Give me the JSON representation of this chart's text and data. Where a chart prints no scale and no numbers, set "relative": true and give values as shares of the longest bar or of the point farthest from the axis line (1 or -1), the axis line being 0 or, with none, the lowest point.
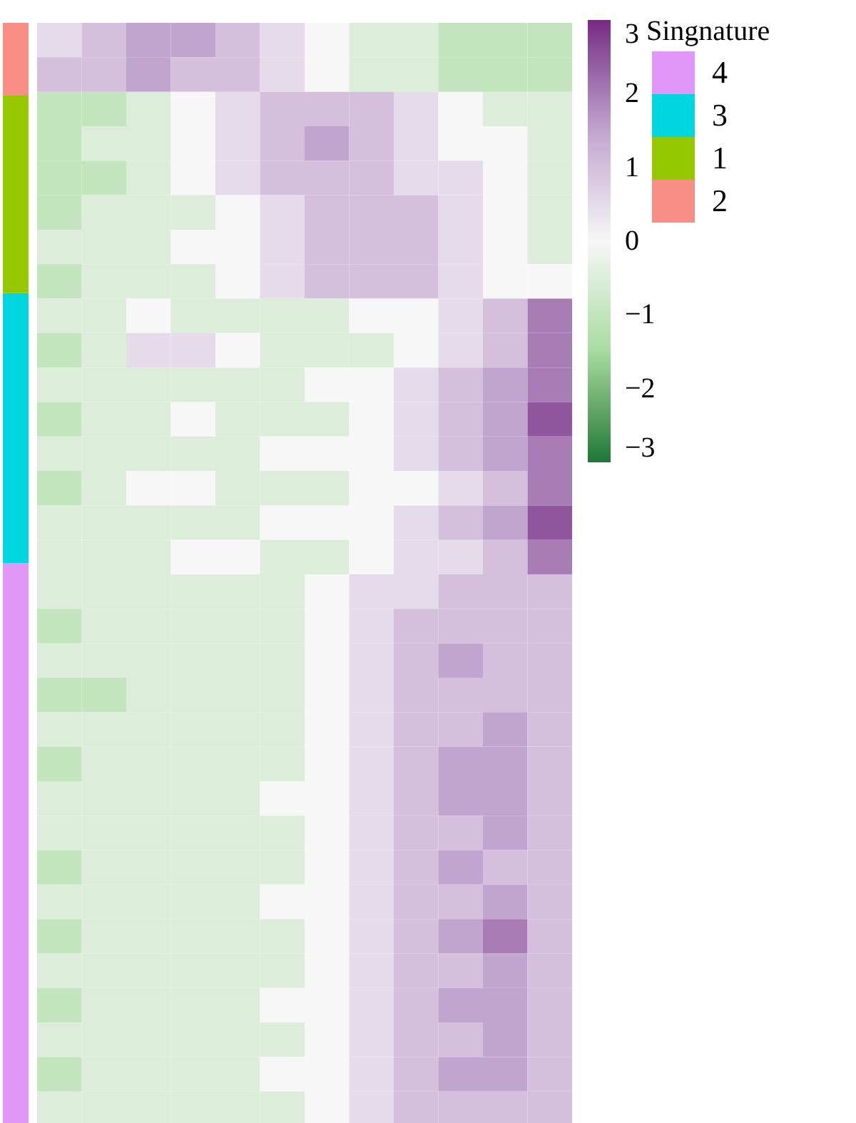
{
  "chart_data": [
    {
      "type": "bar",
      "stacked": true,
      "relative": true,
      "legend_title": "Singnature",
      "legend": "right",
      "categories": [
        null
      ],
      "series": [
        {
          "name": "4",
          "color": "#e097f8",
          "values": [
            0.51
          ]
        },
        {
          "name": "3",
          "color": "#00d6e0",
          "values": [
            0.245
          ]
        },
        {
          "name": "1",
          "color": "#96c800",
          "values": [
            0.179
          ]
        },
        {
          "name": "2",
          "color": "#f98e86",
          "values": [
            0.066
          ]
        }
      ]
    },
    {
      "type": "heatmap",
      "categories": [
        null,
        null,
        null,
        null,
        null,
        null,
        null,
        null,
        null,
        null,
        null,
        null
      ],
      "y_categories": [
        null,
        null,
        null,
        null,
        null,
        null,
        null,
        null,
        null,
        null,
        null,
        null,
        null,
        null,
        null,
        null,
        null,
        null,
        null,
        null,
        null,
        null,
        null,
        null,
        null,
        null,
        null,
        null,
        null,
        null,
        null,
        null
      ],
      "clim": [
        -3,
        3
      ],
      "cticks": [
        3,
        2,
        1,
        0,
        -1,
        -2,
        -3
      ],
      "cells": [
        [
          0.5,
          1,
          1.5,
          1.5,
          1,
          0.5,
          0,
          -0.5,
          -0.5,
          -1,
          -1,
          -1
        ],
        [
          1,
          1,
          1.5,
          1,
          1,
          0.5,
          0,
          -0.5,
          -0.5,
          -1,
          -1,
          -1
        ],
        [
          -1,
          -1,
          -0.5,
          0,
          0.5,
          1,
          1,
          1,
          0.5,
          0,
          -0.5,
          -0.5
        ],
        [
          -1,
          -0.5,
          -0.5,
          0,
          0.5,
          1,
          1.5,
          1,
          0.5,
          0,
          0,
          -0.5
        ],
        [
          -1,
          -1,
          -0.5,
          0,
          0.5,
          1,
          1,
          1,
          0.5,
          0.5,
          0,
          -0.5
        ],
        [
          -1,
          -0.5,
          -0.5,
          -0.5,
          0,
          0.5,
          1,
          1,
          1,
          0.5,
          0,
          -0.5
        ],
        [
          -0.5,
          -0.5,
          -0.5,
          0,
          0,
          0.5,
          1,
          1,
          1,
          0.5,
          0,
          -0.5
        ],
        [
          -1,
          -0.5,
          -0.5,
          -0.5,
          0,
          0.5,
          1,
          1,
          1,
          0.5,
          0,
          0
        ],
        [
          -0.5,
          -0.5,
          0,
          -0.5,
          -0.5,
          -0.5,
          -0.5,
          0,
          0,
          0.5,
          1,
          2
        ],
        [
          -1,
          -0.5,
          0.5,
          0.5,
          0,
          -0.5,
          -0.5,
          -0.5,
          0,
          0.5,
          1,
          2
        ],
        [
          -0.5,
          -0.5,
          -0.5,
          -0.5,
          -0.5,
          -0.5,
          0,
          0,
          0.5,
          1,
          1.5,
          2
        ],
        [
          -1,
          -0.5,
          -0.5,
          0,
          -0.5,
          -0.5,
          -0.5,
          0,
          0.5,
          1,
          1.5,
          2.5
        ],
        [
          -0.5,
          -0.5,
          -0.5,
          -0.5,
          -0.5,
          0,
          0,
          0,
          0.5,
          1,
          1.5,
          2
        ],
        [
          -1,
          -0.5,
          0,
          0,
          -0.5,
          -0.5,
          -0.5,
          0,
          0,
          0.5,
          1,
          2
        ],
        [
          -0.5,
          -0.5,
          -0.5,
          -0.5,
          -0.5,
          0,
          0,
          0,
          0.5,
          1,
          1.5,
          2.5
        ],
        [
          -0.5,
          -0.5,
          -0.5,
          0,
          0,
          -0.5,
          -0.5,
          0,
          0.5,
          0.5,
          1,
          2
        ],
        [
          -0.5,
          -0.5,
          -0.5,
          -0.5,
          -0.5,
          -0.5,
          0,
          0.5,
          0.5,
          1,
          1,
          1
        ],
        [
          -1,
          -0.5,
          -0.5,
          -0.5,
          -0.5,
          -0.5,
          0,
          0.5,
          1,
          1,
          1,
          1
        ],
        [
          -0.5,
          -0.5,
          -0.5,
          -0.5,
          -0.5,
          -0.5,
          0,
          0.5,
          1,
          1.5,
          1,
          1
        ],
        [
          -1,
          -1,
          -0.5,
          -0.5,
          -0.5,
          -0.5,
          0,
          0.5,
          1,
          1,
          1,
          1
        ],
        [
          -0.5,
          -0.5,
          -0.5,
          -0.5,
          -0.5,
          -0.5,
          0,
          0.5,
          1,
          1,
          1.5,
          1
        ],
        [
          -1,
          -0.5,
          -0.5,
          -0.5,
          -0.5,
          -0.5,
          0,
          0.5,
          1,
          1.5,
          1.5,
          1
        ],
        [
          -0.5,
          -0.5,
          -0.5,
          -0.5,
          -0.5,
          0,
          0,
          0.5,
          1,
          1.5,
          1.5,
          1
        ],
        [
          -0.5,
          -0.5,
          -0.5,
          -0.5,
          -0.5,
          -0.5,
          0,
          0.5,
          1,
          1,
          1.5,
          1
        ],
        [
          -1,
          -0.5,
          -0.5,
          -0.5,
          -0.5,
          -0.5,
          0,
          0.5,
          1,
          1.5,
          1,
          1
        ],
        [
          -0.5,
          -0.5,
          -0.5,
          -0.5,
          -0.5,
          0,
          0,
          0.5,
          1,
          1,
          1.5,
          1
        ],
        [
          -1,
          -0.5,
          -0.5,
          -0.5,
          -0.5,
          -0.5,
          0,
          0.5,
          1,
          1.5,
          2,
          1
        ],
        [
          -0.5,
          -0.5,
          -0.5,
          -0.5,
          -0.5,
          -0.5,
          0,
          0.5,
          1,
          1,
          1.5,
          1
        ],
        [
          -1,
          -0.5,
          -0.5,
          -0.5,
          -0.5,
          0,
          0,
          0.5,
          1,
          1.5,
          1.5,
          1
        ],
        [
          -0.5,
          -0.5,
          -0.5,
          -0.5,
          -0.5,
          -0.5,
          0,
          0.5,
          1,
          1,
          1.5,
          1
        ],
        [
          -1,
          -0.5,
          -0.5,
          -0.5,
          -0.5,
          0,
          0,
          0.5,
          1,
          1.5,
          1.5,
          1
        ],
        [
          -0.5,
          -0.5,
          -0.5,
          -0.5,
          -0.5,
          -0.5,
          0,
          0.5,
          1,
          1,
          1,
          1
        ]
      ]
    }
  ]
}
